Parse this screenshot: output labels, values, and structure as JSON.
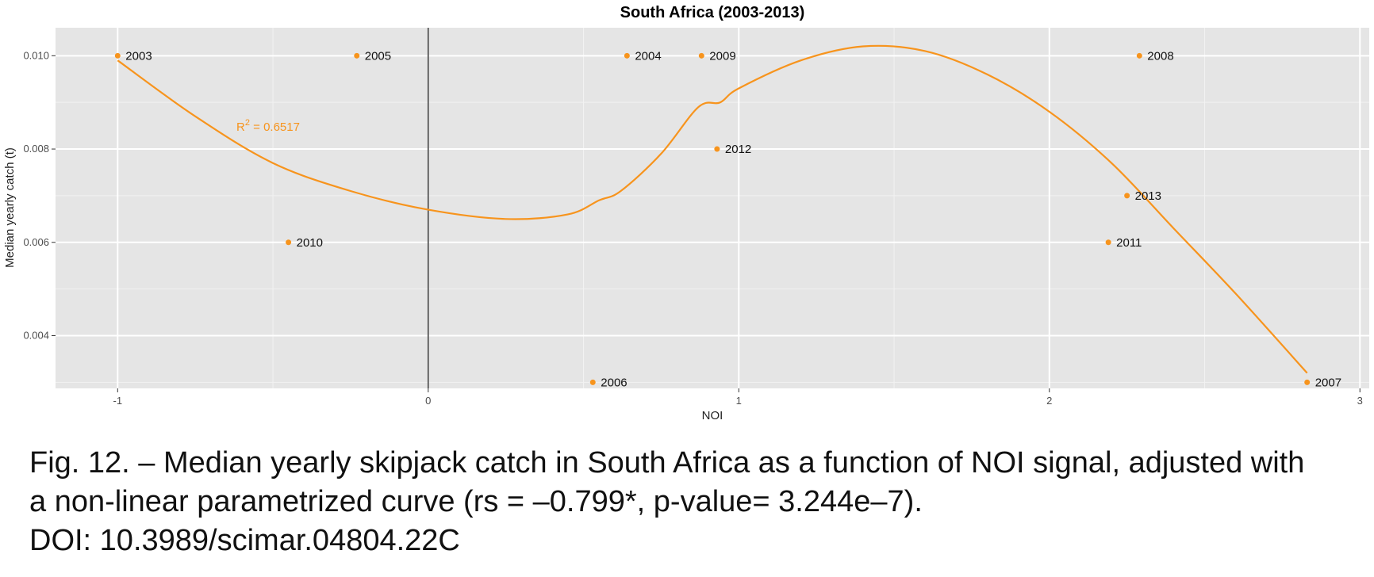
{
  "chart_data": {
    "type": "scatter",
    "title": "South Africa (2003-2013)",
    "xlabel": "NOI",
    "ylabel": "Median yearly catch (t)",
    "xlim": [
      -1.2,
      3.03
    ],
    "ylim": [
      0.00287,
      0.0106
    ],
    "xticks": [
      -1,
      0,
      1,
      2,
      3
    ],
    "xtick_labels": [
      "-1",
      "0",
      "1",
      "2",
      "3"
    ],
    "yticks": [
      0.004,
      0.006,
      0.008,
      0.01
    ],
    "ytick_labels": [
      "0.004",
      "0.006",
      "0.008",
      "0.010"
    ],
    "grid": true,
    "vline_x": 0,
    "color": "#f7941d",
    "points": [
      {
        "label": "2003",
        "x": -1.0,
        "y": 0.01
      },
      {
        "label": "2004",
        "x": 0.64,
        "y": 0.01
      },
      {
        "label": "2005",
        "x": -0.23,
        "y": 0.01
      },
      {
        "label": "2006",
        "x": 0.53,
        "y": 0.003
      },
      {
        "label": "2007",
        "x": 2.83,
        "y": 0.003
      },
      {
        "label": "2008",
        "x": 2.29,
        "y": 0.01
      },
      {
        "label": "2009",
        "x": 0.88,
        "y": 0.01
      },
      {
        "label": "2010",
        "x": -0.45,
        "y": 0.006
      },
      {
        "label": "2011",
        "x": 2.19,
        "y": 0.006
      },
      {
        "label": "2012",
        "x": 0.93,
        "y": 0.008
      },
      {
        "label": "2013",
        "x": 2.25,
        "y": 0.007
      }
    ],
    "fit_curve": {
      "x": [
        -1.0,
        -0.75,
        -0.5,
        -0.25,
        0.0,
        0.25,
        0.45,
        0.55,
        0.62,
        0.75,
        0.87,
        0.94,
        1.0,
        1.2,
        1.4,
        1.6,
        1.8,
        2.0,
        2.2,
        2.4,
        2.6,
        2.83
      ],
      "y": [
        0.0099,
        0.0087,
        0.0077,
        0.0071,
        0.0067,
        0.0065,
        0.0066,
        0.0069,
        0.0071,
        0.0079,
        0.0089,
        0.009,
        0.0093,
        0.0099,
        0.0102,
        0.0101,
        0.0096,
        0.0088,
        0.0077,
        0.0063,
        0.0049,
        0.0032
      ]
    },
    "annotation": {
      "prefix": "R",
      "superscript": "2",
      "text": " = 0.6517"
    }
  },
  "caption": {
    "line1": "Fig. 12. – Median yearly skipjack catch in South Africa as a function of NOI signal, adjusted with",
    "line2": "a non-linear parametrized curve (rs = –0.799*, p-value= 3.244e–7).",
    "line3": "DOI: 10.3989/scimar.04804.22C"
  }
}
